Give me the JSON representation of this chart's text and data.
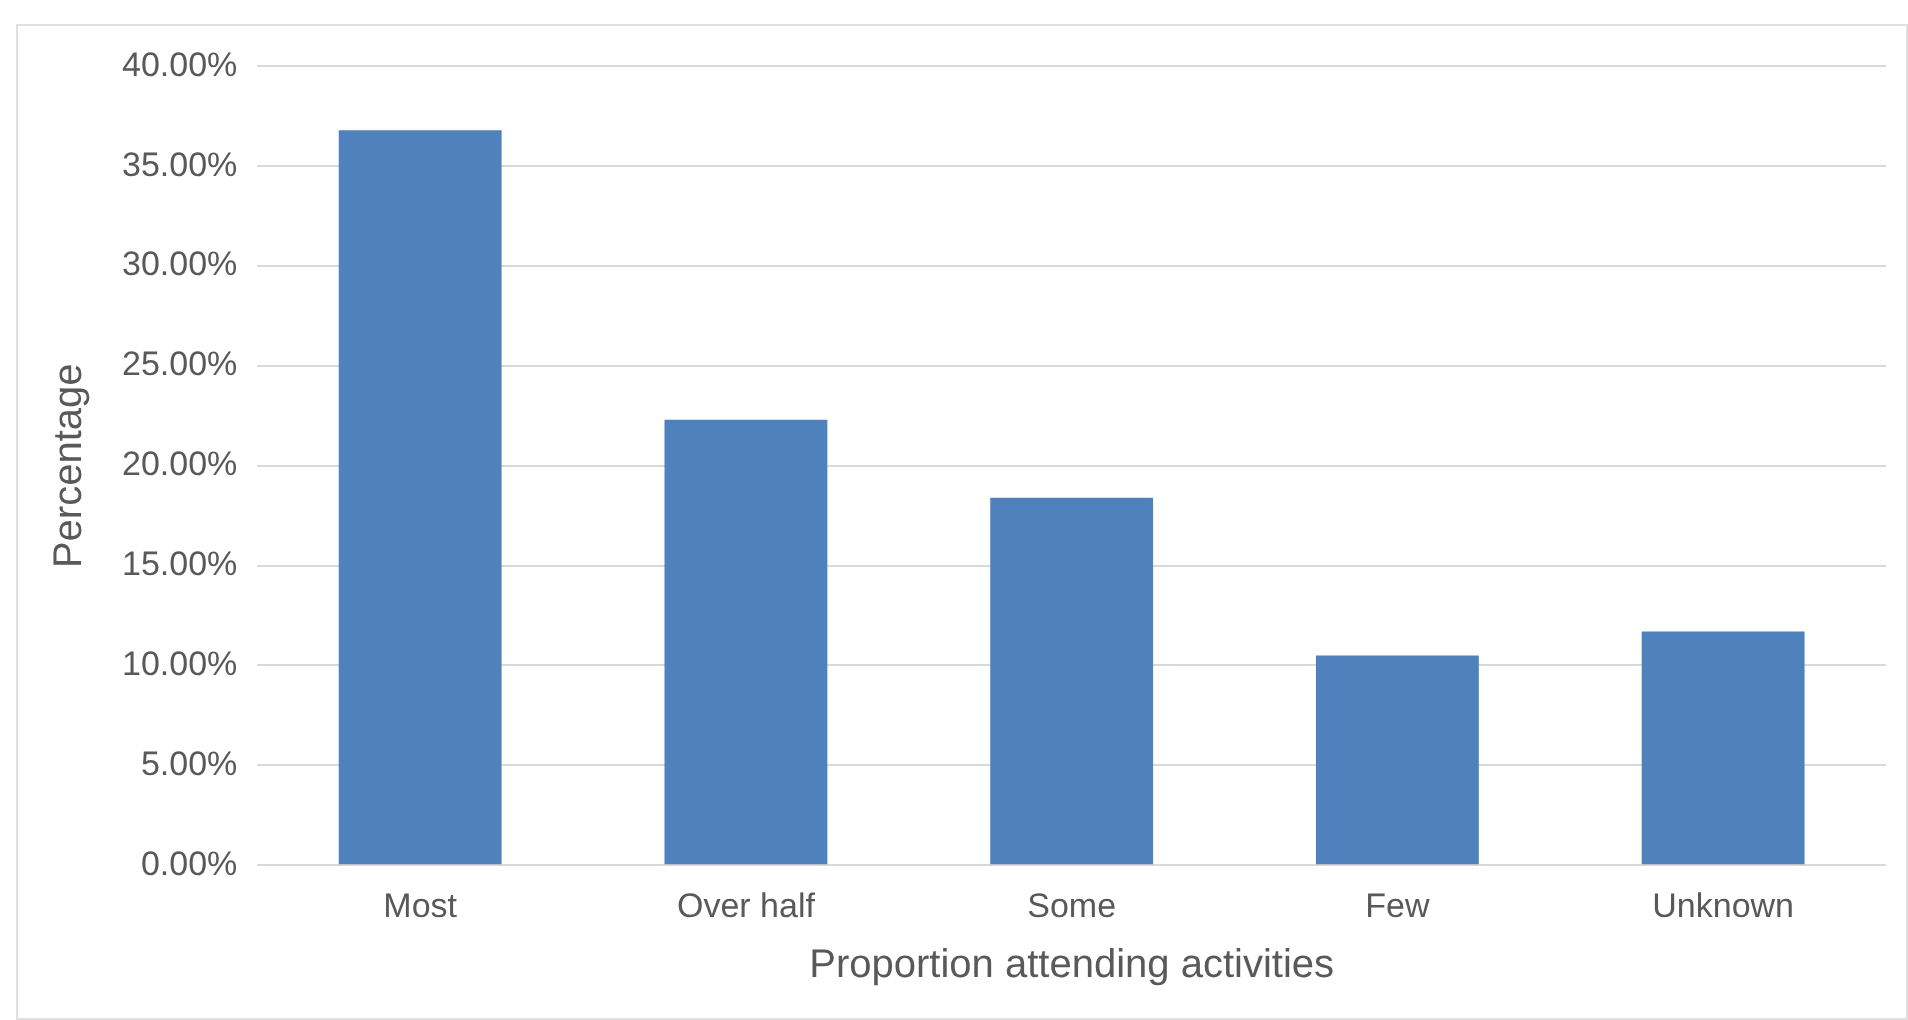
{
  "chart_data": {
    "type": "bar",
    "xlabel": "Proportion attending activities",
    "ylabel": "Percentage",
    "categories": [
      "Most",
      "Over half",
      "Some",
      "Few",
      "Unknown"
    ],
    "values": [
      36.8,
      22.3,
      18.4,
      10.5,
      11.7
    ],
    "color": "#4f81bd",
    "ylim": [
      0,
      40
    ],
    "yticks": [
      {
        "value": 0,
        "label": "0.00%"
      },
      {
        "value": 5,
        "label": "5.00%"
      },
      {
        "value": 10,
        "label": "10.00%"
      },
      {
        "value": 15,
        "label": "15.00%"
      },
      {
        "value": 20,
        "label": "20.00%"
      },
      {
        "value": 25,
        "label": "25.00%"
      },
      {
        "value": 30,
        "label": "30.00%"
      },
      {
        "value": 35,
        "label": "35.00%"
      },
      {
        "value": 40,
        "label": "40.00%"
      }
    ],
    "grid": "y",
    "legend": false
  }
}
